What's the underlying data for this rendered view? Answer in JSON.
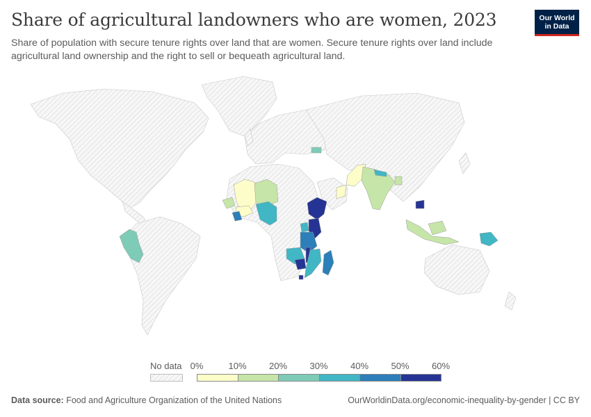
{
  "header": {
    "title": "Share of agricultural landowners who are women, 2023",
    "subtitle": "Share of population with secure tenure rights over land that are women. Secure tenure rights over land include agricultural land ownership and the right to sell or bequeath agricultural land."
  },
  "logo": {
    "line1": "Our World",
    "line2": "in Data",
    "background": "#002147",
    "accent": "#ce261e"
  },
  "legend": {
    "no_data_label": "No data",
    "ticks": [
      "0%",
      "10%",
      "20%",
      "30%",
      "40%",
      "50%",
      "60%"
    ],
    "bins": [
      {
        "range": [
          0,
          10
        ],
        "color": "#fdfdc9"
      },
      {
        "range": [
          10,
          20
        ],
        "color": "#c6e5a8"
      },
      {
        "range": [
          20,
          30
        ],
        "color": "#7ecbb7"
      },
      {
        "range": [
          30,
          40
        ],
        "color": "#41b6c4"
      },
      {
        "range": [
          40,
          50
        ],
        "color": "#2c7fb8"
      },
      {
        "range": [
          50,
          60
        ],
        "color": "#253494"
      }
    ],
    "no_data_color": "#f2f2f2"
  },
  "chart_data": {
    "type": "choropleth",
    "unit": "%",
    "scale": [
      0,
      60
    ],
    "regions": [
      {
        "name": "Peru",
        "value": 25
      },
      {
        "name": "Mali",
        "value": 5
      },
      {
        "name": "Senegal",
        "value": 15
      },
      {
        "name": "Niger",
        "value": 15
      },
      {
        "name": "Burkina Faso",
        "value": 5
      },
      {
        "name": "Nigeria",
        "value": 35
      },
      {
        "name": "Liberia",
        "value": 45
      },
      {
        "name": "Ethiopia",
        "value": 55
      },
      {
        "name": "Uganda",
        "value": 35
      },
      {
        "name": "Kenya",
        "value": 55
      },
      {
        "name": "Tanzania",
        "value": 45
      },
      {
        "name": "Malawi",
        "value": 55
      },
      {
        "name": "Zambia",
        "value": 35
      },
      {
        "name": "Zimbabwe",
        "value": 55
      },
      {
        "name": "Mozambique",
        "value": 35
      },
      {
        "name": "Madagascar",
        "value": 45
      },
      {
        "name": "Lesotho",
        "value": 55
      },
      {
        "name": "Pakistan",
        "value": 5
      },
      {
        "name": "Oman",
        "value": 5
      },
      {
        "name": "India",
        "value": 15
      },
      {
        "name": "Nepal",
        "value": 35
      },
      {
        "name": "Bangladesh",
        "value": 15
      },
      {
        "name": "Cambodia",
        "value": 55
      },
      {
        "name": "Indonesia",
        "value": 15
      },
      {
        "name": "Papua New Guinea",
        "value": 35
      },
      {
        "name": "Georgia",
        "value": 25
      }
    ]
  },
  "footer": {
    "source_label": "Data source:",
    "source_text": "Food and Agriculture Organization of the United Nations",
    "url_text": "OurWorldinData.org/economic-inequality-by-gender | CC BY"
  }
}
